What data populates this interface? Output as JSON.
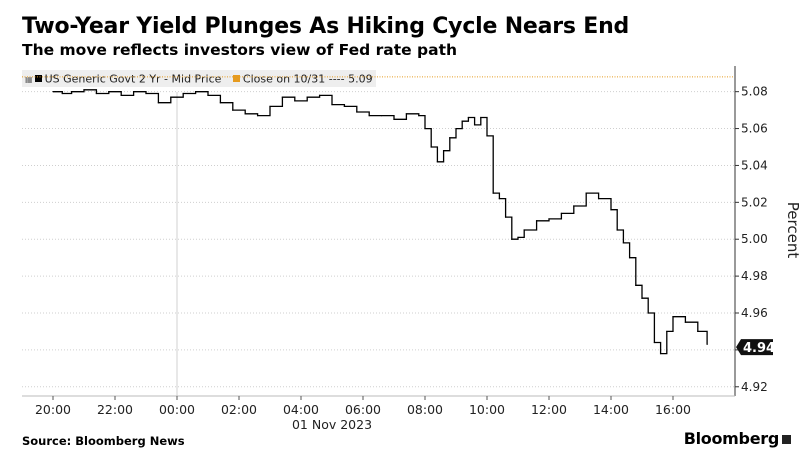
{
  "title": "Two-Year Yield Plunges As Hiking Cycle Nears End",
  "subtitle": "The move reflects investors view of Fed rate path",
  "source": "Source: Bloomberg News",
  "brand": "Bloomberg",
  "colors": {
    "line": "#000000",
    "reference": "#e69b1f",
    "legend_bg": "#eeeeee"
  },
  "chart_data": {
    "type": "line",
    "legend": [
      {
        "name": "US Generic Govt 2 Yr - Mid Price",
        "color": "#000000"
      },
      {
        "name": "Close on 10/31 ---- 5.09",
        "color": "#e69b1f"
      }
    ],
    "ylabel": "Percent",
    "ylim": [
      4.915,
      5.095
    ],
    "yticks": [
      "5.08",
      "5.06",
      "5.04",
      "5.02",
      "5.00",
      "4.98",
      "4.96",
      "4.94",
      "4.92"
    ],
    "ytick_values": [
      5.08,
      5.06,
      5.04,
      5.02,
      5.0,
      4.98,
      4.96,
      4.94,
      4.92
    ],
    "xticks": [
      "20:00",
      "22:00",
      "00:00",
      "02:00",
      "04:00",
      "06:00",
      "08:00",
      "10:00",
      "12:00",
      "14:00",
      "16:00"
    ],
    "xtick_hours": [
      20,
      22,
      24,
      26,
      28,
      30,
      32,
      34,
      36,
      38,
      40
    ],
    "xlim": [
      19.0,
      42.0
    ],
    "date_label": "01 Nov 2023",
    "date_divider_hour": 24,
    "reference_line": 5.088,
    "last_value": "4.94",
    "last_value_y": 4.9415,
    "series": [
      {
        "name": "US Generic Govt 2 Yr - Mid Price",
        "x": [
          20.0,
          20.3,
          20.6,
          21.0,
          21.4,
          21.8,
          22.2,
          22.6,
          23.0,
          23.4,
          23.8,
          24.2,
          24.6,
          25.0,
          25.4,
          25.8,
          26.2,
          26.6,
          27.0,
          27.4,
          27.8,
          28.2,
          28.6,
          29.0,
          29.4,
          29.8,
          30.2,
          30.6,
          31.0,
          31.4,
          31.8,
          32.0,
          32.2,
          32.4,
          32.6,
          32.8,
          33.0,
          33.2,
          33.4,
          33.6,
          33.8,
          34.0,
          34.2,
          34.4,
          34.6,
          34.8,
          35.0,
          35.2,
          35.6,
          36.0,
          36.4,
          36.8,
          37.2,
          37.6,
          38.0,
          38.2,
          38.4,
          38.6,
          38.8,
          39.0,
          39.2,
          39.4,
          39.6,
          39.8,
          40.0,
          40.4,
          40.8,
          41.1
        ],
        "values": [
          5.08,
          5.079,
          5.08,
          5.081,
          5.079,
          5.08,
          5.078,
          5.08,
          5.079,
          5.074,
          5.077,
          5.079,
          5.08,
          5.078,
          5.074,
          5.07,
          5.068,
          5.067,
          5.072,
          5.077,
          5.075,
          5.077,
          5.078,
          5.073,
          5.072,
          5.069,
          5.067,
          5.067,
          5.065,
          5.068,
          5.067,
          5.06,
          5.05,
          5.042,
          5.048,
          5.055,
          5.06,
          5.064,
          5.066,
          5.062,
          5.066,
          5.056,
          5.025,
          5.022,
          5.012,
          5.0,
          5.001,
          5.005,
          5.01,
          5.011,
          5.014,
          5.018,
          5.025,
          5.022,
          5.016,
          5.005,
          4.998,
          4.99,
          4.975,
          4.968,
          4.96,
          4.944,
          4.938,
          4.95,
          4.958,
          4.955,
          4.95,
          4.943
        ]
      }
    ]
  }
}
